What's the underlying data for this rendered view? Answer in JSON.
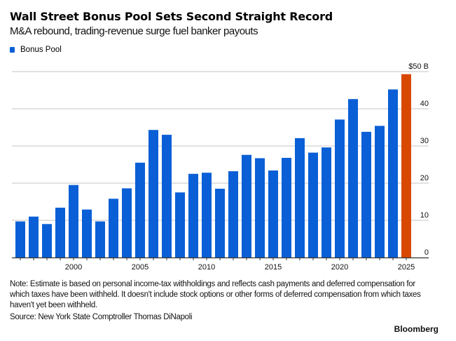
{
  "header": {
    "title": "Wall Street Bonus Pool Sets Second Straight Record",
    "subtitle": "M&A rebound, trading-revenue surge fuel banker payouts"
  },
  "legend": [
    {
      "label": "Bonus Pool",
      "color": "#0a5fd6"
    }
  ],
  "colors": {
    "bar": "#0a5fd6",
    "highlight": "#d94800",
    "grid": "#d9d9d9",
    "axis": "#333333"
  },
  "chart_data": {
    "type": "bar",
    "title": "Wall Street Bonus Pool Sets Second Straight Record",
    "subtitle": "M&A rebound, trading-revenue surge fuel banker payouts",
    "xlabel": "",
    "ylabel": "",
    "legend": [
      "Bonus Pool"
    ],
    "legend_position": "top-left",
    "grid": true,
    "y_axis_side": "right",
    "ylim": [
      0,
      50
    ],
    "yticks": [
      0,
      10,
      20,
      30,
      40,
      50
    ],
    "ytick_labels": [
      "0",
      "10",
      "20",
      "30",
      "40",
      "$50 B"
    ],
    "xtick_labels": [
      "2000",
      "2005",
      "2010",
      "2015",
      "2020",
      "2025"
    ],
    "categories": [
      1996,
      1997,
      1998,
      1999,
      2000,
      2001,
      2002,
      2003,
      2004,
      2005,
      2006,
      2007,
      2008,
      2009,
      2010,
      2011,
      2012,
      2013,
      2014,
      2015,
      2016,
      2017,
      2018,
      2019,
      2020,
      2021,
      2022,
      2023,
      2024,
      2025
    ],
    "series": [
      {
        "name": "Bonus Pool",
        "unit": "$B",
        "values": [
          9.7,
          11.0,
          9.0,
          13.4,
          19.5,
          12.9,
          9.7,
          15.8,
          18.6,
          25.5,
          34.3,
          33.0,
          17.5,
          22.5,
          22.8,
          18.5,
          23.2,
          27.6,
          26.7,
          23.4,
          26.8,
          32.1,
          28.2,
          29.6,
          37.1,
          42.6,
          33.8,
          35.4,
          45.2,
          49.3
        ]
      }
    ],
    "highlight_category": 2025
  },
  "footer": {
    "note": "Note: Estimate is based on personal income-tax withholdings and reflects cash payments and deferred compensation for which taxes have been withheld. It doesn't include stock options or other forms of deferred compensation from which taxes haven't yet been withheld.",
    "source": "Source: New York State Comptroller Thomas DiNapoli",
    "brand": "Bloomberg"
  }
}
